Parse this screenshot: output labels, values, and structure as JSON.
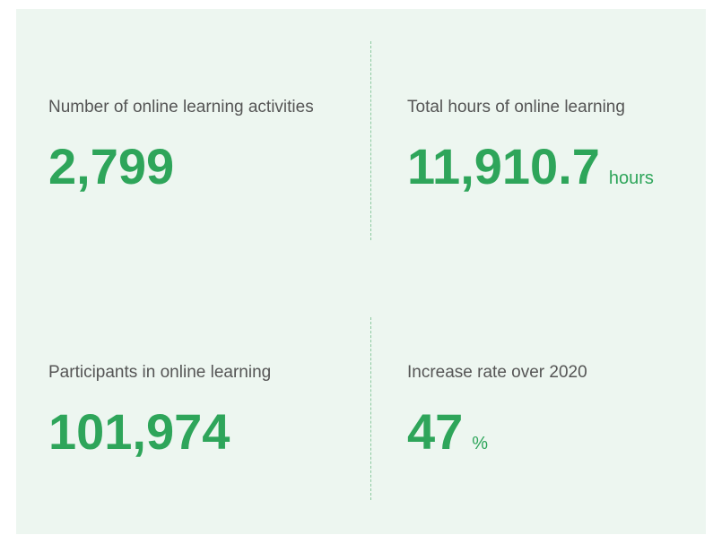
{
  "stats": [
    {
      "label": "Number of online learning activities",
      "value": "2,799"
    },
    {
      "label": "Total hours of online learning",
      "value": "11,910.7",
      "unit": "hours"
    },
    {
      "label": "Participants in online learning",
      "value": "101,974"
    },
    {
      "label": "Increase rate over 2020",
      "value": "47",
      "unit": "%"
    }
  ]
}
